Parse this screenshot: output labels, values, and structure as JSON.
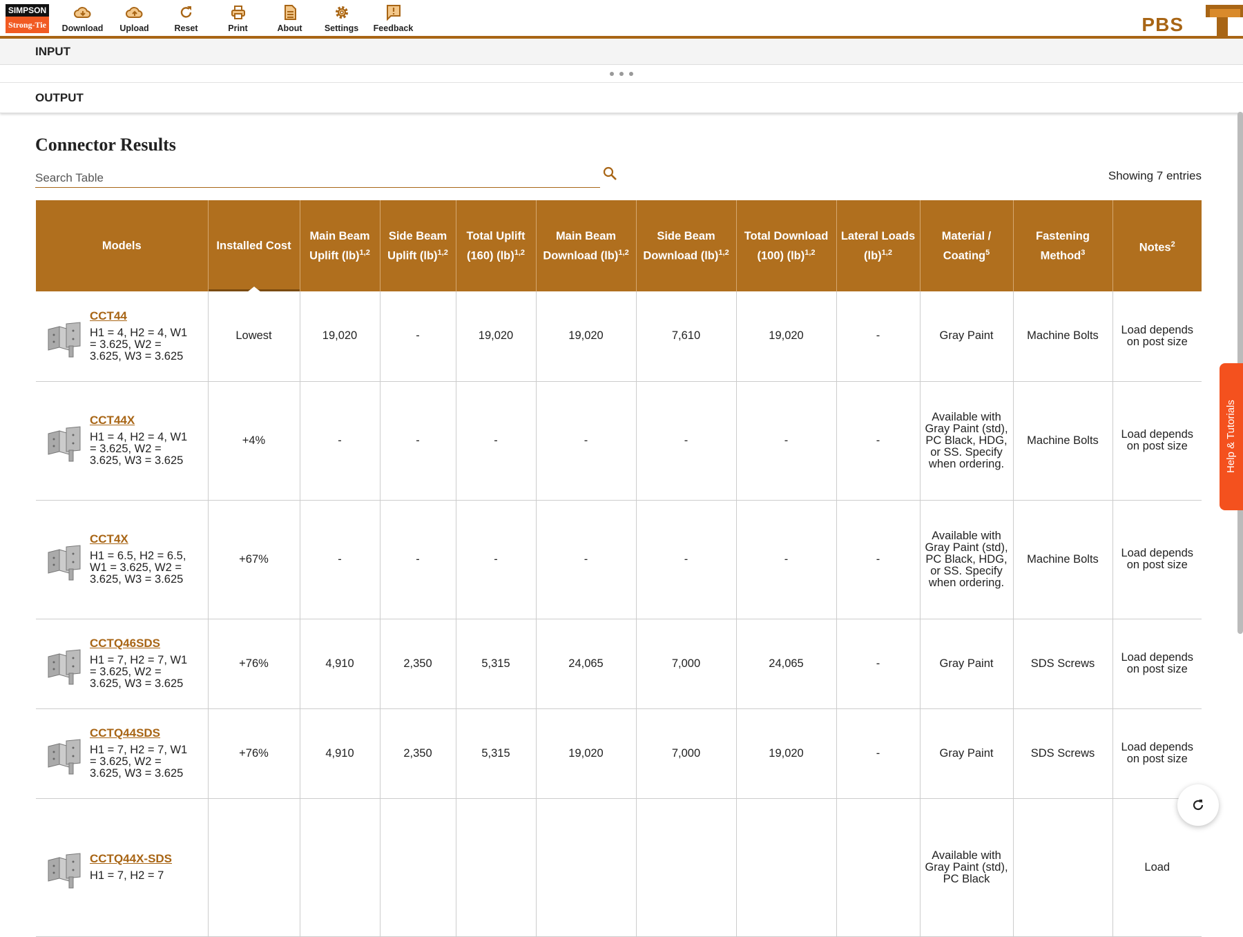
{
  "brand": {
    "logo_top": "SIMPSON",
    "logo_bottom": "Strong-Tie",
    "app_name": "PBS",
    "accent": "#a86515",
    "header_bg": "#b06f1e",
    "help_color": "#f4511e"
  },
  "toolbar": [
    {
      "label": "Download",
      "icon": "cloud-download-icon"
    },
    {
      "label": "Upload",
      "icon": "cloud-upload-icon"
    },
    {
      "label": "Reset",
      "icon": "reset-icon"
    },
    {
      "label": "Print",
      "icon": "print-icon"
    },
    {
      "label": "About",
      "icon": "document-icon"
    },
    {
      "label": "Settings",
      "icon": "gear-icon"
    },
    {
      "label": "Feedback",
      "icon": "feedback-icon"
    }
  ],
  "sections": {
    "input": "INPUT",
    "output": "OUTPUT"
  },
  "results": {
    "title": "Connector Results",
    "search_placeholder": "Search Table",
    "search_value": "",
    "showing": "Showing 7 entries"
  },
  "columns": [
    {
      "label": "Models",
      "sup": ""
    },
    {
      "label": "Installed Cost",
      "sup": "",
      "sorted": true
    },
    {
      "label": "Main Beam Uplift (lb)",
      "sup": "1,2"
    },
    {
      "label": "Side Beam Uplift (lb)",
      "sup": "1,2"
    },
    {
      "label": "Total Uplift (160) (lb)",
      "sup": "1,2"
    },
    {
      "label": "Main Beam Download (lb)",
      "sup": "1,2"
    },
    {
      "label": "Side Beam Download (lb)",
      "sup": "1,2"
    },
    {
      "label": "Total Download (100) (lb)",
      "sup": "1,2"
    },
    {
      "label": "Lateral Loads (lb)",
      "sup": "1,2"
    },
    {
      "label": "Material / Coating",
      "sup": "5"
    },
    {
      "label": "Fastening Method",
      "sup": "3"
    },
    {
      "label": "Notes",
      "sup": "2"
    }
  ],
  "rows": [
    {
      "model": "CCT44",
      "dims": "H1 = 4, H2 = 4, W1 = 3.625, W2 = 3.625, W3 = 3.625",
      "cells": [
        "Lowest",
        "19,020",
        "-",
        "19,020",
        "19,020",
        "7,610",
        "19,020",
        "-",
        "Gray Paint",
        "Machine Bolts",
        "Load depends on post size"
      ]
    },
    {
      "model": "CCT44X",
      "dims": "H1 = 4, H2 = 4, W1 = 3.625, W2 = 3.625, W3 = 3.625",
      "cells": [
        "+4%",
        "-",
        "-",
        "-",
        "-",
        "-",
        "-",
        "-",
        "Available with Gray Paint (std), PC Black, HDG, or SS. Specify when ordering.",
        "Machine Bolts",
        "Load depends on post size"
      ]
    },
    {
      "model": "CCT4X",
      "dims": "H1 = 6.5, H2 = 6.5, W1 = 3.625, W2 = 3.625, W3 = 3.625",
      "cells": [
        "+67%",
        "-",
        "-",
        "-",
        "-",
        "-",
        "-",
        "-",
        "Available with Gray Paint (std), PC Black, HDG, or SS. Specify when ordering.",
        "Machine Bolts",
        "Load depends on post size"
      ]
    },
    {
      "model": "CCTQ46SDS",
      "dims": "H1 = 7, H2 = 7, W1 = 3.625, W2 = 3.625, W3 = 3.625",
      "cells": [
        "+76%",
        "4,910",
        "2,350",
        "5,315",
        "24,065",
        "7,000",
        "24,065",
        "-",
        "Gray Paint",
        "SDS Screws",
        "Load depends on post size"
      ]
    },
    {
      "model": "CCTQ44SDS",
      "dims": "H1 = 7, H2 = 7, W1 = 3.625, W2 = 3.625, W3 = 3.625",
      "cells": [
        "+76%",
        "4,910",
        "2,350",
        "5,315",
        "19,020",
        "7,000",
        "19,020",
        "-",
        "Gray Paint",
        "SDS Screws",
        "Load depends on post size"
      ]
    },
    {
      "model": "CCTQ44X-SDS",
      "dims": "H1 = 7, H2 = 7",
      "cells": [
        "",
        "",
        "",
        "",
        "",
        "",
        "",
        "",
        "Available with Gray Paint (std), PC Black",
        "",
        "Load"
      ]
    }
  ],
  "help_tab": "Help & Tutorials"
}
